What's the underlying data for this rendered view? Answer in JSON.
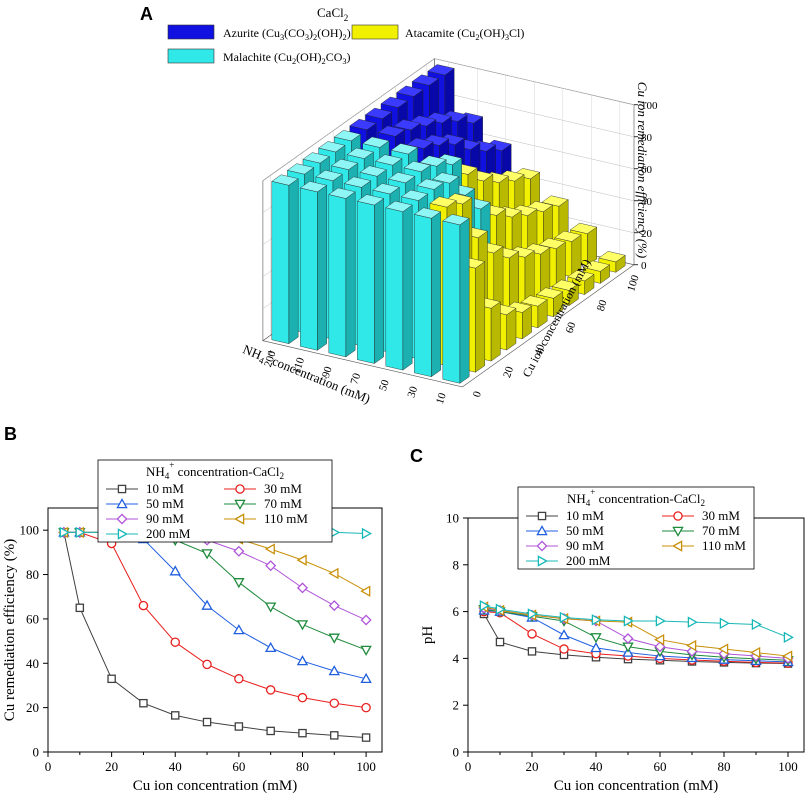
{
  "panel_labels": {
    "a": "A",
    "b": "B",
    "c": "C"
  },
  "chart_data": [
    {
      "id": "A",
      "type": "bar3d",
      "title": "CaCl2",
      "title_main": "CaCl",
      "title_sub": "2",
      "xlabel": "NH4+ concentration (mM)",
      "ylabel": "Cu ion concentration (mM)",
      "zlabel": "Cu ion remediation efficiency (%)",
      "nh4_ticks": [
        "10",
        "30",
        "50",
        "70",
        "90",
        "110",
        "200"
      ],
      "cu_ticks": [
        "0",
        "20",
        "40",
        "60",
        "80",
        "100"
      ],
      "z_ticks": [
        "0",
        "20",
        "40",
        "60",
        "80",
        "100"
      ],
      "zlim": [
        0,
        100
      ],
      "legend": [
        {
          "name": "Azurite (Cu3(CO3)2(OH)2)",
          "color": "#1010e0"
        },
        {
          "name": "Atacamite (Cu2(OH)3Cl)",
          "color": "#f0f000"
        },
        {
          "name": "Malachite (Cu2(OH)2CO3)",
          "color": "#30e8e8"
        }
      ]
    },
    {
      "id": "B",
      "type": "line",
      "xlabel": "Cu ion concentration (mM)",
      "ylabel": "Cu remediation efficiency (%)",
      "xlim": [
        0,
        105
      ],
      "ylim": [
        0,
        110
      ],
      "xticks": [
        "0",
        "20",
        "40",
        "60",
        "80",
        "100"
      ],
      "yticks": [
        "0",
        "20",
        "40",
        "60",
        "80",
        "100"
      ],
      "legend_title": "NH4+ concentration-CaCl2",
      "x": [
        5,
        10,
        20,
        30,
        40,
        50,
        60,
        70,
        80,
        90,
        100
      ],
      "series": [
        {
          "name": "10 mM",
          "color": "#404040",
          "marker": "square",
          "values": [
            99,
            65,
            33,
            22,
            16.5,
            13.5,
            11.5,
            9.5,
            8.5,
            7.5,
            6.5
          ]
        },
        {
          "name": "30 mM",
          "color": "#e8201e",
          "marker": "circle",
          "values": [
            99,
            99,
            94,
            66,
            49.5,
            39.5,
            33,
            28,
            24.5,
            22,
            20
          ]
        },
        {
          "name": "50 mM",
          "color": "#1f5fe0",
          "marker": "triangle-up",
          "values": [
            99,
            99,
            99,
            96,
            81.5,
            66,
            55,
            47,
            41,
            36.5,
            33
          ]
        },
        {
          "name": "70 mM",
          "color": "#1e8a3c",
          "marker": "triangle-down",
          "values": [
            99,
            99,
            99,
            99,
            95.5,
            89.5,
            76.5,
            65.5,
            57.5,
            51.5,
            46
          ]
        },
        {
          "name": "90 mM",
          "color": "#b055d8",
          "marker": "diamond",
          "values": [
            99,
            99,
            99,
            99,
            99,
            95.5,
            90.5,
            84,
            74,
            66,
            59.5
          ]
        },
        {
          "name": "110 mM",
          "color": "#c8900a",
          "marker": "triangle-left",
          "values": [
            99,
            99,
            99,
            99,
            99,
            99,
            96,
            91.5,
            86.5,
            80.5,
            72.5
          ]
        },
        {
          "name": "200 mM",
          "color": "#18b8b8",
          "marker": "triangle-right",
          "values": [
            99,
            99,
            99,
            99,
            99,
            99,
            99,
            99,
            99,
            99,
            98.5
          ]
        }
      ]
    },
    {
      "id": "C",
      "type": "line",
      "xlabel": "Cu ion concentration (mM)",
      "ylabel": "pH",
      "xlim": [
        0,
        105
      ],
      "ylim": [
        0,
        10
      ],
      "xticks": [
        "0",
        "20",
        "40",
        "60",
        "80",
        "100"
      ],
      "yticks": [
        "0",
        "2",
        "4",
        "6",
        "8",
        "10"
      ],
      "legend_title": "NH4+ concentration-CaCl2",
      "x": [
        5,
        10,
        20,
        30,
        40,
        50,
        60,
        70,
        80,
        90,
        100
      ],
      "series": [
        {
          "name": "10 mM",
          "color": "#404040",
          "marker": "square",
          "values": [
            5.9,
            4.7,
            4.3,
            4.15,
            4.05,
            3.97,
            3.92,
            3.87,
            3.83,
            3.8,
            3.78
          ]
        },
        {
          "name": "30 mM",
          "color": "#e8201e",
          "marker": "circle",
          "values": [
            6.0,
            5.95,
            5.05,
            4.4,
            4.2,
            4.1,
            4.0,
            3.93,
            3.88,
            3.83,
            3.8
          ]
        },
        {
          "name": "50 mM",
          "color": "#1f5fe0",
          "marker": "triangle-up",
          "values": [
            6.05,
            6.0,
            5.75,
            5.0,
            4.45,
            4.25,
            4.1,
            4.02,
            3.95,
            3.9,
            3.85
          ]
        },
        {
          "name": "70 mM",
          "color": "#1e8a3c",
          "marker": "triangle-down",
          "values": [
            6.1,
            6.0,
            5.8,
            5.6,
            4.9,
            4.5,
            4.3,
            4.15,
            4.05,
            3.98,
            3.92
          ]
        },
        {
          "name": "90 mM",
          "color": "#b055d8",
          "marker": "diamond",
          "values": [
            6.15,
            6.05,
            5.85,
            5.7,
            5.6,
            4.85,
            4.5,
            4.3,
            4.2,
            4.1,
            4.0
          ]
        },
        {
          "name": "110 mM",
          "color": "#c8900a",
          "marker": "triangle-left",
          "values": [
            6.2,
            6.05,
            5.85,
            5.7,
            5.6,
            5.55,
            4.8,
            4.55,
            4.4,
            4.25,
            4.1
          ]
        },
        {
          "name": "200 mM",
          "color": "#18b8b8",
          "marker": "triangle-right",
          "values": [
            6.25,
            6.1,
            5.9,
            5.75,
            5.65,
            5.6,
            5.6,
            5.55,
            5.5,
            5.45,
            4.9
          ]
        }
      ]
    }
  ]
}
